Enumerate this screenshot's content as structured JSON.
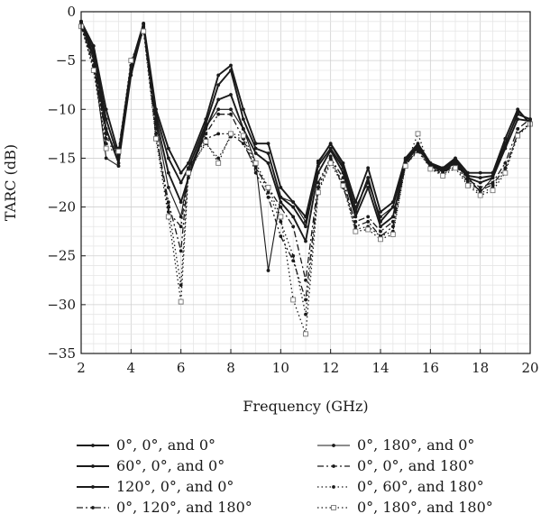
{
  "chart_data": {
    "type": "line",
    "xlabel": "Frequency (GHz)",
    "ylabel": "TARC (dB)",
    "xlim": [
      2,
      20
    ],
    "ylim": [
      -35,
      0
    ],
    "xticks": [
      2,
      4,
      6,
      8,
      10,
      12,
      14,
      16,
      18,
      20
    ],
    "yticks": [
      0,
      -5,
      -10,
      -15,
      -20,
      -25,
      -30,
      -35
    ],
    "grid": true,
    "legend_position": "bottom",
    "x": [
      2,
      2.5,
      3,
      3.5,
      4,
      4.5,
      5,
      5.5,
      6,
      6.3,
      7,
      7.5,
      8,
      8.5,
      9,
      9.5,
      10,
      10.5,
      11,
      11.5,
      12,
      12.5,
      13,
      13.5,
      14,
      14.5,
      15,
      15.5,
      16,
      16.5,
      17,
      17.5,
      18,
      18.5,
      19,
      19.5,
      20
    ],
    "series": [
      {
        "name": "0°, 0°, and 0°",
        "style": "solid-thick",
        "values": [
          -1,
          -3.5,
          -10,
          -14.5,
          -5.5,
          -1.2,
          -10,
          -14,
          -16.5,
          -15.5,
          -11,
          -6.5,
          -5.5,
          -10,
          -13.5,
          -13.5,
          -18,
          -19.5,
          -21,
          -15.5,
          -13.5,
          -15.5,
          -19.5,
          -16,
          -20.5,
          -19.5,
          -15,
          -13.5,
          -15.5,
          -16,
          -15,
          -16.5,
          -16.5,
          -16.5,
          -13,
          -10,
          -11.5
        ]
      },
      {
        "name": "60°, 0°, and 0°",
        "style": "solid-thick",
        "values": [
          -1,
          -4,
          -11,
          -15,
          -6,
          -1.3,
          -10.5,
          -15,
          -17.5,
          -16,
          -11.5,
          -7.5,
          -6,
          -11,
          -14,
          -14.5,
          -19,
          -20,
          -22,
          -15.8,
          -14,
          -16,
          -20.5,
          -17,
          -21.5,
          -20,
          -15.2,
          -13.7,
          -15.6,
          -16.2,
          -15.2,
          -16.8,
          -17,
          -16.8,
          -13.5,
          -10.5,
          -11
        ]
      },
      {
        "name": "120°, 0°, and 0°",
        "style": "solid-thick",
        "values": [
          -1.2,
          -4.5,
          -12,
          -15.5,
          -6.5,
          -1.5,
          -11,
          -16.5,
          -19.5,
          -17,
          -12,
          -9,
          -8.5,
          -12,
          -14.5,
          -15.5,
          -19.5,
          -21,
          -23.5,
          -16.5,
          -14.2,
          -16.5,
          -21,
          -18,
          -22,
          -21,
          -15.4,
          -13.9,
          -15.7,
          -16.4,
          -15.4,
          -17,
          -17.5,
          -17,
          -14,
          -11,
          -11.2
        ]
      },
      {
        "name": "0°, 120°, and 180°",
        "style": "dash-dot-dot",
        "values": [
          -1.5,
          -5,
          -13,
          -14,
          -5.8,
          -1.8,
          -12,
          -20.5,
          -22,
          -16.5,
          -12.5,
          -10.5,
          -10.5,
          -13,
          -16.5,
          -19,
          -23,
          -25.5,
          -29.5,
          -18,
          -14.8,
          -18,
          -21.5,
          -21,
          -22.5,
          -21.5,
          -15.8,
          -14,
          -15.8,
          -16.5,
          -15.5,
          -17.2,
          -18,
          -17.5,
          -15.5,
          -12,
          -11
        ]
      },
      {
        "name": "0°, 180°, and 0°",
        "style": "solid-thin",
        "values": [
          -1,
          -5,
          -15,
          -15.8,
          -6,
          -1.2,
          -11.5,
          -18,
          -21,
          -16.5,
          -11.8,
          -10,
          -10,
          -12,
          -15.5,
          -26.5,
          -19,
          -19.5,
          -21.5,
          -15.3,
          -13.6,
          -15.8,
          -20,
          -17.5,
          -21,
          -20,
          -15.1,
          -13.6,
          -15.5,
          -16.1,
          -15.1,
          -16.9,
          -18.5,
          -17,
          -13.8,
          -10.2,
          -11.3
        ]
      },
      {
        "name": "0°, 0°, and 180°",
        "style": "dash-dot",
        "values": [
          -1.3,
          -5.5,
          -12.5,
          -14.8,
          -6.2,
          -1.6,
          -12.5,
          -19.5,
          -24.5,
          -16,
          -13,
          -12.5,
          -12.5,
          -13.5,
          -16,
          -18,
          -20,
          -22,
          -27.5,
          -17.5,
          -15,
          -17,
          -22,
          -21.5,
          -23,
          -22,
          -15.6,
          -14.2,
          -15.9,
          -16.6,
          -15.6,
          -17.4,
          -18.3,
          -17.7,
          -16,
          -12.5,
          -11.5
        ]
      },
      {
        "name": "0°, 60°, and 180°",
        "style": "dotted",
        "values": [
          -1.4,
          -5.8,
          -13.5,
          -14.2,
          -5.5,
          -1.5,
          -12.8,
          -20,
          -28,
          -16.2,
          -13.5,
          -15,
          -12.8,
          -13,
          -15.8,
          -18.5,
          -21.5,
          -25,
          -31,
          -18.3,
          -15.3,
          -17.5,
          -22.3,
          -22,
          -23,
          -22.5,
          -15.7,
          -14.3,
          -16,
          -16.7,
          -15.8,
          -17.6,
          -18.6,
          -18,
          -16.3,
          -12.5,
          -11.4
        ]
      },
      {
        "name": "0°, 180°, and 180°",
        "style": "dotted-square",
        "values": [
          -1.5,
          -6,
          -14,
          -14.3,
          -5,
          -2,
          -13,
          -21,
          -29.7,
          -16.5,
          -13.3,
          -15.5,
          -12.5,
          -12.7,
          -15.5,
          -18,
          -21,
          -29.5,
          -33,
          -18.5,
          -15.5,
          -17.8,
          -22.5,
          -22.3,
          -23.3,
          -22.8,
          -15.8,
          -12.5,
          -16.1,
          -16.8,
          -16,
          -17.8,
          -18.8,
          -18.3,
          -16.5,
          -12.7,
          -11.5
        ]
      }
    ]
  }
}
